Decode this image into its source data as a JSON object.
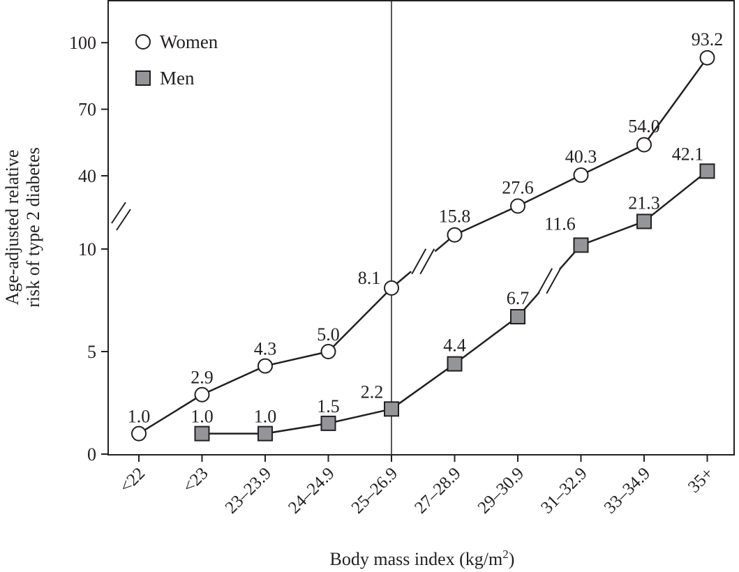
{
  "chart_data": {
    "type": "line",
    "title": "",
    "xlabel": "Body mass index (kg/m²)",
    "xlabel_main": "Body mass index (kg/m",
    "xlabel_sup": "2",
    "xlabel_end": ")",
    "ylabel_lines": [
      "Age-adjusted relative",
      "risk of type 2 diabetes"
    ],
    "categories": [
      "<22",
      "<23",
      "23–23.9",
      "24–24.9",
      "25–26.9",
      "27–28.9",
      "29–30.9",
      "31–32.9",
      "33–34.9",
      "35+"
    ],
    "yticks": [
      0,
      5,
      10,
      40,
      70,
      100
    ],
    "ylim": [
      0,
      100
    ],
    "y_axis_break": "between 10 and 40",
    "reference_line_category": "25–26.9",
    "legend_placement": "top-left",
    "series": [
      {
        "name": "Women",
        "marker": "open-circle",
        "color": "#ffffff",
        "values": [
          1.0,
          2.9,
          4.3,
          5.0,
          8.1,
          15.8,
          27.6,
          40.3,
          54.0,
          93.2
        ],
        "labels": [
          "1.0",
          "2.9",
          "4.3",
          "5.0",
          "8.1",
          "15.8",
          "27.6",
          "40.3",
          "54.0",
          "93.2"
        ],
        "break_after_index": 4
      },
      {
        "name": "Men",
        "marker": "filled-square",
        "color": "#939598",
        "values": [
          null,
          1.0,
          1.0,
          1.5,
          2.2,
          4.4,
          6.7,
          11.6,
          21.3,
          42.1
        ],
        "labels": [
          null,
          "1.0",
          "1.0",
          "1.5",
          "2.2",
          "4.4",
          "6.7",
          "11.6",
          "21.3",
          "42.1"
        ],
        "break_after_index": 6
      }
    ]
  }
}
